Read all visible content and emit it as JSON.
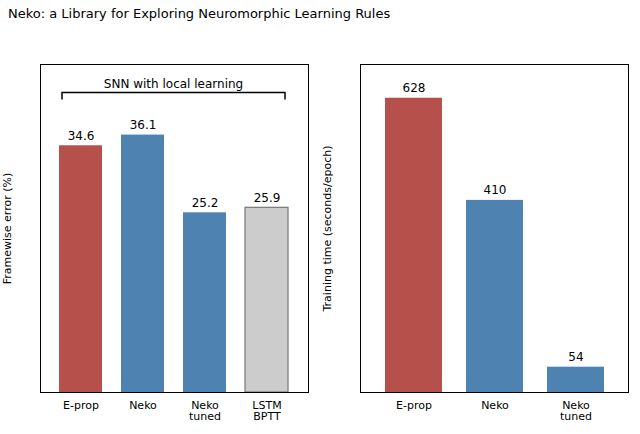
{
  "chart_data": [
    {
      "type": "bar",
      "title": "Neko: a Library for Exploring Neuromorphic Learning Rules",
      "categories": [
        "E-prop",
        "Neko",
        "Neko\ntuned",
        "LSTM\nBPTT"
      ],
      "values": [
        34.6,
        36.1,
        25.2,
        25.9
      ],
      "colors": [
        "#b5514a",
        "#4e82b0",
        "#4e82b0",
        "hatched"
      ],
      "ylabel": "Framewise error (%)",
      "ylim": [
        0,
        46
      ],
      "tick_labels": "x",
      "data_labels": true,
      "annotation": "SNN with local learning"
    },
    {
      "type": "bar",
      "categories": [
        "E-prop",
        "Neko",
        "Neko\ntuned"
      ],
      "values": [
        628,
        410,
        54
      ],
      "colors": [
        "#b5514a",
        "#4e82b0",
        "#4e82b0"
      ],
      "ylabel": "Training time (seconds/epoch)",
      "ylim": [
        0,
        700
      ],
      "tick_labels": "x",
      "data_labels": true
    }
  ]
}
